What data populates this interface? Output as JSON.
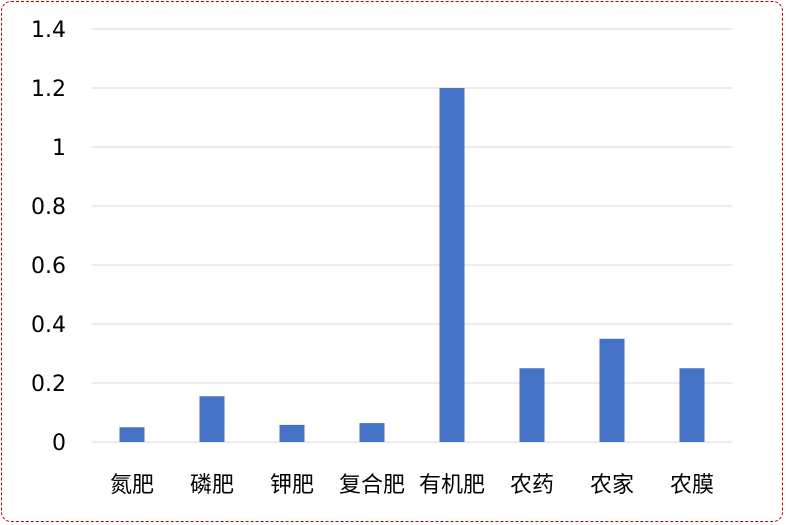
{
  "chart_data": {
    "type": "bar",
    "categories": [
      "氮肥",
      "磷肥",
      "钾肥",
      "复合肥",
      "有机肥",
      "农药",
      "农家",
      "农膜"
    ],
    "values": [
      0.05,
      0.155,
      0.058,
      0.064,
      1.2,
      0.25,
      0.35,
      0.25
    ],
    "yticks": [
      "0",
      "0.2",
      "0.4",
      "0.6",
      "0.8",
      "1",
      "1.2",
      "1.4"
    ],
    "ylim": [
      0,
      1.4
    ],
    "grid": true,
    "title": "",
    "xlabel": "",
    "ylabel": "",
    "colors": {
      "bar": "#4472c4",
      "grid": "#d9d9d9",
      "border": "#c00000"
    }
  }
}
